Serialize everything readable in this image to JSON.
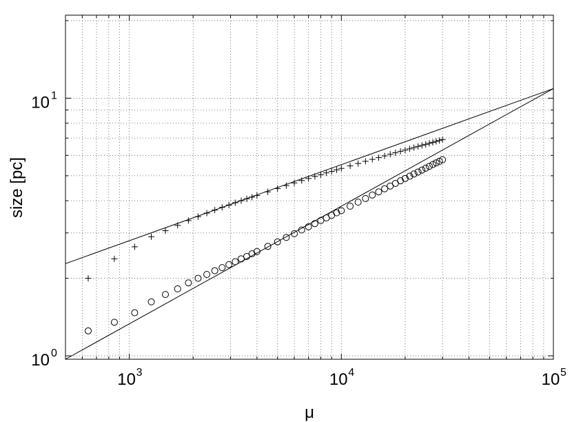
{
  "chart_data": {
    "type": "scatter",
    "title": "",
    "xlabel": "μ",
    "ylabel": "size [pc]",
    "xscale": "log",
    "yscale": "log",
    "xlim": [
      500,
      100000
    ],
    "ylim": [
      0.97,
      21
    ],
    "grid": true,
    "grid_style": "dotted",
    "legend": "none",
    "x_tick_labels": [
      {
        "value": 1000,
        "base": "10",
        "exp": "3"
      },
      {
        "value": 10000,
        "base": "10",
        "exp": "4"
      },
      {
        "value": 100000,
        "base": "10",
        "exp": "5"
      }
    ],
    "y_tick_labels": [
      {
        "value": 1,
        "base": "10",
        "exp": "0"
      },
      {
        "value": 10,
        "base": "10",
        "exp": "1"
      }
    ],
    "series": [
      {
        "marker": "plus",
        "x": [
          640,
          850,
          1060,
          1270,
          1480,
          1690,
          1900,
          2110,
          2320,
          2530,
          2740,
          2950,
          3160,
          3370,
          3580,
          3790,
          4000,
          4500,
          5000,
          5500,
          6000,
          6500,
          7000,
          7500,
          8000,
          8500,
          9000,
          9500,
          10000,
          11000,
          12000,
          13000,
          14000,
          15000,
          16000,
          17000,
          18000,
          19000,
          20000,
          21000,
          22000,
          23000,
          24000,
          25000,
          26000,
          27000,
          28000,
          29000,
          30000
        ],
        "y": [
          2.0,
          2.38,
          2.65,
          2.9,
          3.06,
          3.21,
          3.35,
          3.47,
          3.58,
          3.68,
          3.77,
          3.85,
          3.93,
          4.0,
          4.07,
          4.13,
          4.19,
          4.33,
          4.46,
          4.58,
          4.69,
          4.79,
          4.88,
          4.97,
          5.05,
          5.13,
          5.2,
          5.27,
          5.34,
          5.46,
          5.58,
          5.69,
          5.79,
          5.88,
          5.97,
          6.06,
          6.14,
          6.22,
          6.29,
          6.36,
          6.43,
          6.5,
          6.56,
          6.62,
          6.68,
          6.74,
          6.8,
          6.85,
          6.91
        ]
      },
      {
        "marker": "circle",
        "x": [
          640,
          850,
          1060,
          1270,
          1480,
          1690,
          1900,
          2110,
          2320,
          2530,
          2740,
          2950,
          3160,
          3370,
          3580,
          3790,
          4000,
          4500,
          5000,
          5500,
          6000,
          6500,
          7000,
          7500,
          8000,
          8500,
          9000,
          9500,
          10000,
          11000,
          12000,
          13000,
          14000,
          15000,
          16000,
          17000,
          18000,
          19000,
          20000,
          21000,
          22000,
          23000,
          24000,
          25000,
          26000,
          27000,
          28000,
          29000,
          30000
        ],
        "y": [
          1.25,
          1.35,
          1.47,
          1.62,
          1.73,
          1.82,
          1.92,
          2.0,
          2.07,
          2.14,
          2.2,
          2.26,
          2.32,
          2.38,
          2.43,
          2.49,
          2.54,
          2.66,
          2.77,
          2.88,
          2.98,
          3.08,
          3.17,
          3.26,
          3.35,
          3.43,
          3.51,
          3.59,
          3.66,
          3.81,
          3.95,
          4.08,
          4.21,
          4.33,
          4.45,
          4.56,
          4.67,
          4.78,
          4.88,
          4.98,
          5.08,
          5.17,
          5.26,
          5.35,
          5.44,
          5.53,
          5.61,
          5.69,
          5.77
        ]
      }
    ],
    "fit_lines": [
      {
        "from": [
          500,
          2.28
        ],
        "to": [
          100000,
          10.9
        ]
      },
      {
        "from": [
          500,
          0.97
        ],
        "to": [
          100000,
          10.9
        ]
      }
    ]
  }
}
